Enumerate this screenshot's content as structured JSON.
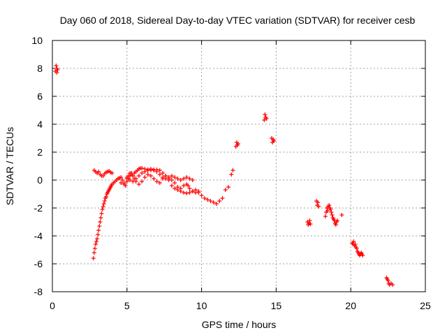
{
  "chart_data": {
    "type": "scatter",
    "title": "Day 060 of 2018, Sidereal Day-to-day VTEC variation (SDTVAR) for receiver cesb",
    "xlabel": "GPS time / hours",
    "ylabel": "SDTVAR / TECUs",
    "xlim": [
      0,
      25
    ],
    "ylim": [
      -8,
      10
    ],
    "xticks": [
      "0",
      "5",
      "10",
      "15",
      "20",
      "25"
    ],
    "yticks": [
      "-8",
      "-6",
      "-4",
      "-2",
      "0",
      "2",
      "4",
      "6",
      "8",
      "10"
    ],
    "grid": true,
    "marker": "+",
    "series_color": "#ff0000",
    "series": [
      {
        "name": "SDTVAR",
        "x": [
          0.2,
          0.25,
          0.3,
          0.3,
          0.35,
          2.75,
          2.8,
          2.85,
          2.9,
          2.95,
          3.0,
          3.05,
          3.1,
          3.15,
          3.2,
          3.25,
          3.3,
          3.35,
          3.4,
          3.45,
          3.5,
          3.55,
          3.6,
          3.65,
          3.7,
          3.75,
          3.8,
          3.85,
          3.9,
          3.95,
          4.0,
          4.1,
          4.2,
          4.3,
          4.4,
          4.5,
          4.6,
          4.7,
          4.8,
          4.9,
          5.0,
          5.1,
          5.2,
          5.3,
          5.4,
          5.5,
          5.6,
          5.7,
          5.8,
          5.9,
          6.0,
          6.2,
          6.4,
          6.6,
          6.8,
          7.0,
          7.2,
          7.4,
          7.6,
          7.8,
          8.0,
          8.2,
          8.4,
          8.6,
          8.8,
          9.0,
          9.2,
          9.4,
          9.6,
          9.8,
          10.0,
          10.2,
          10.4,
          10.6,
          10.8,
          11.0,
          11.2,
          11.4,
          11.6,
          11.8,
          12.0,
          12.1,
          2.8,
          2.9,
          3.0,
          3.1,
          3.2,
          3.3,
          3.4,
          3.5,
          3.6,
          3.7,
          3.8,
          3.9,
          4.0,
          4.6,
          4.8,
          5.0,
          5.1,
          5.2,
          5.3,
          5.4,
          5.5,
          5.6,
          5.8,
          6.0,
          6.2,
          6.4,
          6.6,
          6.8,
          7.0,
          7.2,
          7.4,
          7.6,
          7.8,
          8.0,
          8.2,
          8.4,
          8.6,
          8.8,
          9.0,
          9.1,
          9.2,
          9.4,
          9.6,
          9.8,
          5.0,
          5.2,
          5.4,
          5.6,
          5.8,
          6.0,
          6.2,
          6.4,
          6.6,
          6.8,
          7.0,
          7.2,
          7.4,
          7.6,
          7.8,
          8.0,
          8.2,
          8.4,
          8.6,
          8.8,
          9.0,
          9.2,
          9.4,
          12.3,
          12.35,
          12.4,
          12.45,
          14.2,
          14.25,
          14.3,
          14.35,
          14.7,
          14.75,
          14.8,
          14.85,
          17.1,
          17.15,
          17.2,
          17.25,
          17.3,
          17.7,
          17.75,
          17.8,
          17.85,
          18.3,
          18.35,
          18.4,
          18.45,
          18.5,
          18.55,
          18.6,
          18.65,
          18.7,
          18.75,
          18.8,
          18.85,
          18.9,
          18.95,
          19.0,
          19.05,
          19.1,
          19.4,
          20.1,
          20.15,
          20.2,
          20.25,
          20.3,
          20.35,
          20.4,
          20.45,
          20.5,
          20.55,
          20.6,
          20.65,
          20.7,
          20.75,
          20.8,
          22.4,
          22.45,
          22.5,
          22.55,
          22.6,
          22.7,
          22.8
        ],
        "y": [
          7.8,
          8.2,
          8.0,
          7.7,
          7.9,
          -5.6,
          -5.2,
          -4.9,
          -4.6,
          -4.4,
          -4.2,
          -3.9,
          -3.6,
          -3.3,
          -3.0,
          -2.7,
          -2.4,
          -2.1,
          -1.9,
          -1.7,
          -1.5,
          -1.3,
          -1.2,
          -1.0,
          -0.9,
          -0.8,
          -0.7,
          -0.6,
          -0.5,
          -0.4,
          -0.3,
          -0.2,
          -0.1,
          0.0,
          0.1,
          0.15,
          0.2,
          0.0,
          -0.2,
          -0.4,
          0.1,
          0.3,
          0.5,
          0.4,
          0.3,
          0.5,
          0.6,
          0.7,
          0.8,
          0.85,
          0.85,
          0.8,
          0.75,
          0.7,
          0.7,
          0.75,
          0.7,
          0.5,
          0.3,
          0.1,
          0.0,
          -0.2,
          -0.5,
          -0.8,
          -0.9,
          -0.95,
          -0.9,
          -0.8,
          -0.7,
          -0.9,
          -1.1,
          -1.3,
          -1.4,
          -1.5,
          -1.6,
          -1.7,
          -1.5,
          -1.3,
          -0.7,
          -0.5,
          0.4,
          0.7,
          0.7,
          0.6,
          0.5,
          0.6,
          0.4,
          0.3,
          0.3,
          0.45,
          0.55,
          0.6,
          0.65,
          0.55,
          0.5,
          -0.2,
          -0.3,
          -0.1,
          0.1,
          0.3,
          0.5,
          0.3,
          0.1,
          -0.1,
          -0.3,
          -0.1,
          0.2,
          0.4,
          0.3,
          0.1,
          -0.1,
          -0.2,
          0.1,
          0.3,
          0.0,
          -0.4,
          -0.6,
          -0.7,
          -0.6,
          -0.4,
          -0.3,
          -0.4,
          -0.6,
          -0.8,
          -0.9,
          -0.8,
          0.2,
          0.0,
          -0.1,
          0.1,
          0.3,
          0.5,
          0.6,
          0.7,
          0.8,
          0.75,
          0.6,
          0.4,
          0.2,
          0.1,
          0.2,
          0.3,
          0.2,
          0.1,
          0.0,
          0.1,
          0.2,
          0.1,
          0.0,
          2.4,
          2.7,
          2.5,
          2.6,
          4.3,
          4.7,
          4.5,
          4.4,
          3.0,
          2.7,
          2.9,
          2.8,
          -3.0,
          -3.2,
          -3.1,
          -2.9,
          -3.15,
          -1.5,
          -1.8,
          -1.6,
          -1.9,
          -2.6,
          -2.3,
          -2.0,
          -2.2,
          -1.9,
          -1.8,
          -2.0,
          -2.1,
          -2.3,
          -2.5,
          -2.7,
          -2.8,
          -2.9,
          -3.1,
          -3.2,
          -3.0,
          -2.9,
          -2.5,
          -4.5,
          -4.6,
          -4.4,
          -4.7,
          -4.6,
          -4.8,
          -4.9,
          -5.1,
          -5.2,
          -5.3,
          -5.4,
          -5.3,
          -5.2,
          -5.3,
          -5.4,
          -7.0,
          -7.1,
          -7.2,
          -7.4,
          -7.5,
          -7.4,
          -7.5
        ]
      }
    ]
  }
}
